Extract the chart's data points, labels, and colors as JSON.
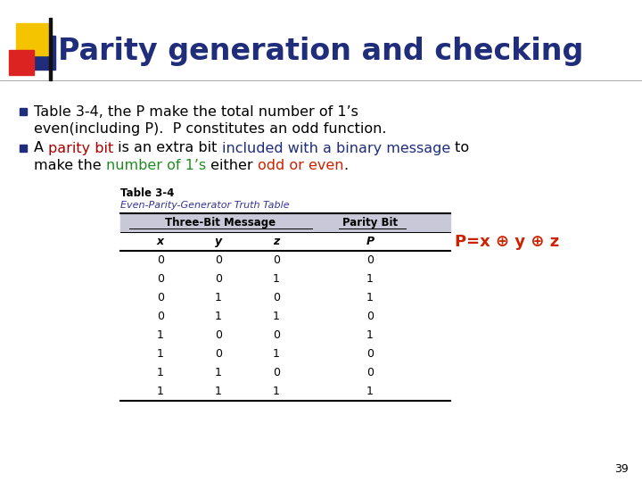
{
  "title": "Parity generation and checking",
  "title_color": "#1F2D7B",
  "title_fontsize": 24,
  "background_color": "#FFFFFF",
  "bullet_color": "#1F2D7B",
  "bullet1_text": "Table 3-4, the P make the total number of 1’s\neven(including P).  P constitutes an odd function.",
  "bullet2_line1": [
    {
      "text": "A ",
      "color": "#000000"
    },
    {
      "text": "parity bit",
      "color": "#AA0000"
    },
    {
      "text": " is an extra bit ",
      "color": "#000000"
    },
    {
      "text": "included with a binary message",
      "color": "#1F2D7B"
    },
    {
      "text": " to",
      "color": "#000000"
    }
  ],
  "bullet2_line2": [
    {
      "text": "make the ",
      "color": "#000000"
    },
    {
      "text": "number of 1’s",
      "color": "#228B22"
    },
    {
      "text": " either ",
      "color": "#000000"
    },
    {
      "text": "odd or even",
      "color": "#CC2200"
    },
    {
      "text": ".",
      "color": "#000000"
    }
  ],
  "table_title": "Table 3-4",
  "table_subtitle": "Even-Parity-Generator Truth Table",
  "col_header_left": "Three-Bit Message",
  "col_header_right": "Parity Bit",
  "col_labels": [
    "x",
    "y",
    "z",
    "P"
  ],
  "table_data": [
    [
      0,
      0,
      0,
      0
    ],
    [
      0,
      0,
      1,
      1
    ],
    [
      0,
      1,
      0,
      1
    ],
    [
      0,
      1,
      1,
      0
    ],
    [
      1,
      0,
      0,
      1
    ],
    [
      1,
      0,
      1,
      0
    ],
    [
      1,
      1,
      0,
      0
    ],
    [
      1,
      1,
      1,
      1
    ]
  ],
  "formula_text": "P=x ⊕ y ⊕ z",
  "formula_color": "#CC2200",
  "page_number": "39",
  "sq_yellow": "#F5C400",
  "sq_red": "#DD2222",
  "sq_blue": "#1F2D7B",
  "divider_color": "#888888"
}
